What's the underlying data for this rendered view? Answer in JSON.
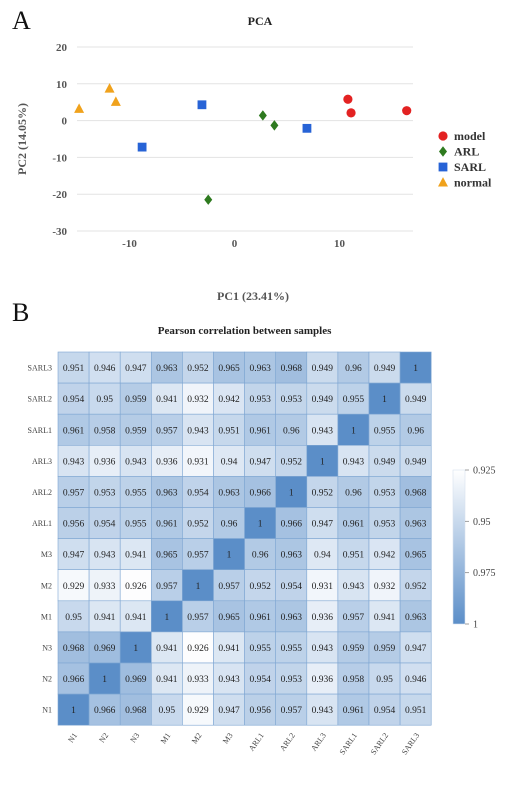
{
  "panels": {
    "a_label": "A",
    "b_label": "B"
  },
  "chart_data": [
    {
      "type": "scatter",
      "title": "PCA",
      "xlabel": "PC1 (23.41%)",
      "ylabel": "PC2 (14.05%)",
      "xlim": [
        -15,
        17
      ],
      "ylim": [
        -30,
        20
      ],
      "xticks": [
        -10,
        0,
        10
      ],
      "yticks": [
        20,
        10,
        0,
        -10,
        -20,
        -30
      ],
      "grid": "horizontal",
      "legend_position": "right",
      "series": [
        {
          "name": "model",
          "marker": "circle",
          "color": "#e32222",
          "points": [
            [
              10.8,
              5.8
            ],
            [
              11.1,
              2.1
            ],
            [
              16.4,
              2.7
            ]
          ]
        },
        {
          "name": "ARL",
          "marker": "diamond",
          "color": "#2e7a1f",
          "points": [
            [
              2.7,
              1.4
            ],
            [
              3.8,
              -1.3
            ],
            [
              -2.5,
              -21.5
            ]
          ]
        },
        {
          "name": "SARL",
          "marker": "square",
          "color": "#2763d6",
          "points": [
            [
              -3.1,
              4.3
            ],
            [
              6.9,
              -2.1
            ],
            [
              -8.8,
              -7.2
            ]
          ]
        },
        {
          "name": "normal",
          "marker": "triangle",
          "color": "#f0a21c",
          "points": [
            [
              -14.8,
              3.2
            ],
            [
              -11.9,
              8.7
            ],
            [
              -11.3,
              5.1
            ]
          ]
        }
      ]
    },
    {
      "type": "heatmap",
      "title": "Pearson correlation between samples",
      "x_labels": [
        "N1",
        "N2",
        "N3",
        "M1",
        "M2",
        "M3",
        "ARL1",
        "ARL2",
        "ARL3",
        "SARL1",
        "SARL2",
        "SARL3"
      ],
      "y_labels": [
        "SARL3",
        "SARL2",
        "SARL1",
        "ARL3",
        "ARL2",
        "ARL1",
        "M3",
        "M2",
        "M1",
        "N3",
        "N2",
        "N1"
      ],
      "values": [
        [
          "0.951",
          "0.946",
          "0.947",
          "0.963",
          "0.952",
          "0.965",
          "0.963",
          "0.968",
          "0.949",
          "0.96",
          "0.949",
          "1"
        ],
        [
          "0.954",
          "0.95",
          "0.959",
          "0.941",
          "0.932",
          "0.942",
          "0.953",
          "0.953",
          "0.949",
          "0.955",
          "1",
          "0.949"
        ],
        [
          "0.961",
          "0.958",
          "0.959",
          "0.957",
          "0.943",
          "0.951",
          "0.961",
          "0.96",
          "0.943",
          "1",
          "0.955",
          "0.96"
        ],
        [
          "0.943",
          "0.936",
          "0.943",
          "0.936",
          "0.931",
          "0.94",
          "0.947",
          "0.952",
          "1",
          "0.943",
          "0.949",
          "0.949"
        ],
        [
          "0.957",
          "0.953",
          "0.955",
          "0.963",
          "0.954",
          "0.963",
          "0.966",
          "1",
          "0.952",
          "0.96",
          "0.953",
          "0.968"
        ],
        [
          "0.956",
          "0.954",
          "0.955",
          "0.961",
          "0.952",
          "0.96",
          "1",
          "0.966",
          "0.947",
          "0.961",
          "0.953",
          "0.963"
        ],
        [
          "0.947",
          "0.943",
          "0.941",
          "0.965",
          "0.957",
          "1",
          "0.96",
          "0.963",
          "0.94",
          "0.951",
          "0.942",
          "0.965"
        ],
        [
          "0.929",
          "0.933",
          "0.926",
          "0.957",
          "1",
          "0.957",
          "0.952",
          "0.954",
          "0.931",
          "0.943",
          "0.932",
          "0.952"
        ],
        [
          "0.95",
          "0.941",
          "0.941",
          "1",
          "0.957",
          "0.965",
          "0.961",
          "0.963",
          "0.936",
          "0.957",
          "0.941",
          "0.963"
        ],
        [
          "0.968",
          "0.969",
          "1",
          "0.941",
          "0.926",
          "0.941",
          "0.955",
          "0.955",
          "0.943",
          "0.959",
          "0.959",
          "0.947"
        ],
        [
          "0.966",
          "1",
          "0.969",
          "0.941",
          "0.933",
          "0.943",
          "0.954",
          "0.953",
          "0.936",
          "0.958",
          "0.95",
          "0.946"
        ],
        [
          "1",
          "0.966",
          "0.968",
          "0.95",
          "0.929",
          "0.947",
          "0.956",
          "0.957",
          "0.943",
          "0.961",
          "0.954",
          "0.951"
        ]
      ],
      "colorbar": {
        "ticks": [
          "0.925",
          "0.95",
          "0.975",
          "1"
        ],
        "range": [
          0.925,
          1
        ],
        "color_low": "#ffffff",
        "color_high": "#5b8ec8"
      }
    }
  ]
}
